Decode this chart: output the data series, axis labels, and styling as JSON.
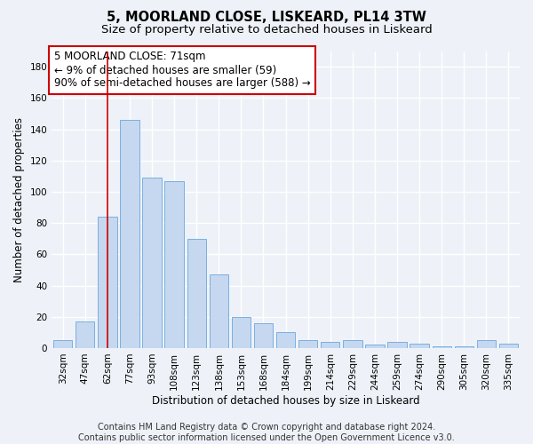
{
  "title1": "5, MOORLAND CLOSE, LISKEARD, PL14 3TW",
  "title2": "Size of property relative to detached houses in Liskeard",
  "xlabel": "Distribution of detached houses by size in Liskeard",
  "ylabel": "Number of detached properties",
  "categories": [
    "32sqm",
    "47sqm",
    "62sqm",
    "77sqm",
    "93sqm",
    "108sqm",
    "123sqm",
    "138sqm",
    "153sqm",
    "168sqm",
    "184sqm",
    "199sqm",
    "214sqm",
    "229sqm",
    "244sqm",
    "259sqm",
    "274sqm",
    "290sqm",
    "305sqm",
    "320sqm",
    "335sqm"
  ],
  "values": [
    5,
    17,
    84,
    146,
    109,
    107,
    70,
    47,
    20,
    16,
    10,
    5,
    4,
    5,
    2,
    4,
    3,
    1,
    1,
    5,
    3
  ],
  "bar_color": "#c5d8f0",
  "bar_edge_color": "#7aafe0",
  "property_line_color": "#cc0000",
  "property_line_x": 2,
  "annotation_box_text": "5 MOORLAND CLOSE: 71sqm\n← 9% of detached houses are smaller (59)\n90% of semi-detached houses are larger (588) →",
  "annotation_box_color": "#ffffff",
  "annotation_box_edge_color": "#cc0000",
  "bg_color": "#eef2f8",
  "grid_color": "#ffffff",
  "footer1": "Contains HM Land Registry data © Crown copyright and database right 2024.",
  "footer2": "Contains public sector information licensed under the Open Government Licence v3.0.",
  "ylim": [
    0,
    190
  ],
  "yticks": [
    0,
    20,
    40,
    60,
    80,
    100,
    120,
    140,
    160,
    180
  ],
  "title1_fontsize": 10.5,
  "title2_fontsize": 9.5,
  "xlabel_fontsize": 8.5,
  "ylabel_fontsize": 8.5,
  "tick_fontsize": 7.5,
  "footer_fontsize": 7,
  "annot_fontsize": 8.5
}
